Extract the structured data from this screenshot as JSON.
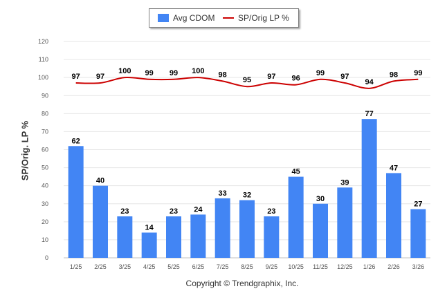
{
  "legend": {
    "bar_label": "Avg CDOM",
    "line_label": "SP/Orig LP %"
  },
  "footer": {
    "copyright": "Copyright © Trendgraphix, Inc."
  },
  "colors": {
    "bar": "#4285f4",
    "line": "#cc0000",
    "grid": "#e6e6e6"
  },
  "chart_data": {
    "type": "bar",
    "title": "",
    "xlabel": "",
    "ylabel": "SP/Orig. LP %",
    "ylim": [
      0,
      120
    ],
    "yticks": [
      0,
      10,
      20,
      30,
      40,
      50,
      60,
      70,
      80,
      90,
      100,
      110,
      120
    ],
    "grid": true,
    "legend_position": "top-center",
    "categories": [
      "1/25",
      "2/25",
      "3/25",
      "4/25",
      "5/25",
      "6/25",
      "7/25",
      "8/25",
      "9/25",
      "10/25",
      "11/25",
      "12/25",
      "1/26",
      "2/26",
      "3/26"
    ],
    "series": [
      {
        "name": "Avg CDOM",
        "type": "bar",
        "values": [
          62,
          40,
          23,
          14,
          23,
          24,
          33,
          32,
          23,
          45,
          30,
          39,
          77,
          47,
          27
        ]
      },
      {
        "name": "SP/Orig LP %",
        "type": "line",
        "values": [
          97,
          97,
          100,
          99,
          99,
          100,
          98,
          95,
          97,
          96,
          99,
          97,
          94,
          98,
          99
        ]
      }
    ]
  }
}
